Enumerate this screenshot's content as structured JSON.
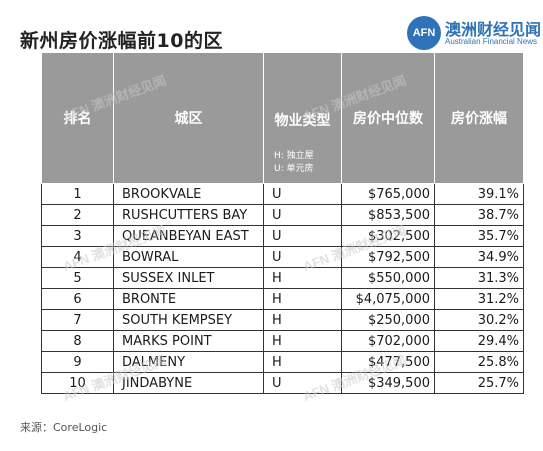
{
  "title": "新州房价涨幅前10的区",
  "logo": {
    "mark": "AFN",
    "name_cn": "澳洲财经见闻",
    "name_en": "Australian Financial News"
  },
  "watermark": "AFN 澳洲财经见闻",
  "table": {
    "headers": {
      "rank": "排名",
      "district": "城区",
      "property_type": "物业类型",
      "type_note_h": "H: 独立屋",
      "type_note_u": "U: 单元房",
      "median_price": "房价中位数",
      "growth": "房价涨幅"
    },
    "rows": [
      {
        "rank": "1",
        "district": "BROOKVALE",
        "type": "U",
        "price": "$765,000",
        "growth": "39.1%"
      },
      {
        "rank": "2",
        "district": "RUSHCUTTERS BAY",
        "type": "U",
        "price": "$853,500",
        "growth": "38.7%"
      },
      {
        "rank": "3",
        "district": "QUEANBEYAN EAST",
        "type": "U",
        "price": "$302,500",
        "growth": "35.7%"
      },
      {
        "rank": "4",
        "district": "BOWRAL",
        "type": "U",
        "price": "$792,500",
        "growth": "34.9%"
      },
      {
        "rank": "5",
        "district": "SUSSEX INLET",
        "type": "H",
        "price": "$550,000",
        "growth": "31.3%"
      },
      {
        "rank": "6",
        "district": "BRONTE",
        "type": "H",
        "price": "$4,075,000",
        "growth": "31.2%"
      },
      {
        "rank": "7",
        "district": "SOUTH KEMPSEY",
        "type": "H",
        "price": "$250,000",
        "growth": "30.2%"
      },
      {
        "rank": "8",
        "district": "MARKS POINT",
        "type": "H",
        "price": "$702,000",
        "growth": "29.4%"
      },
      {
        "rank": "9",
        "district": "DALMENY",
        "type": "H",
        "price": "$477,500",
        "growth": "25.8%"
      },
      {
        "rank": "10",
        "district": "JINDABYNE",
        "type": "U",
        "price": "$349,500",
        "growth": "25.7%"
      }
    ]
  },
  "source": "来源：CoreLogic"
}
